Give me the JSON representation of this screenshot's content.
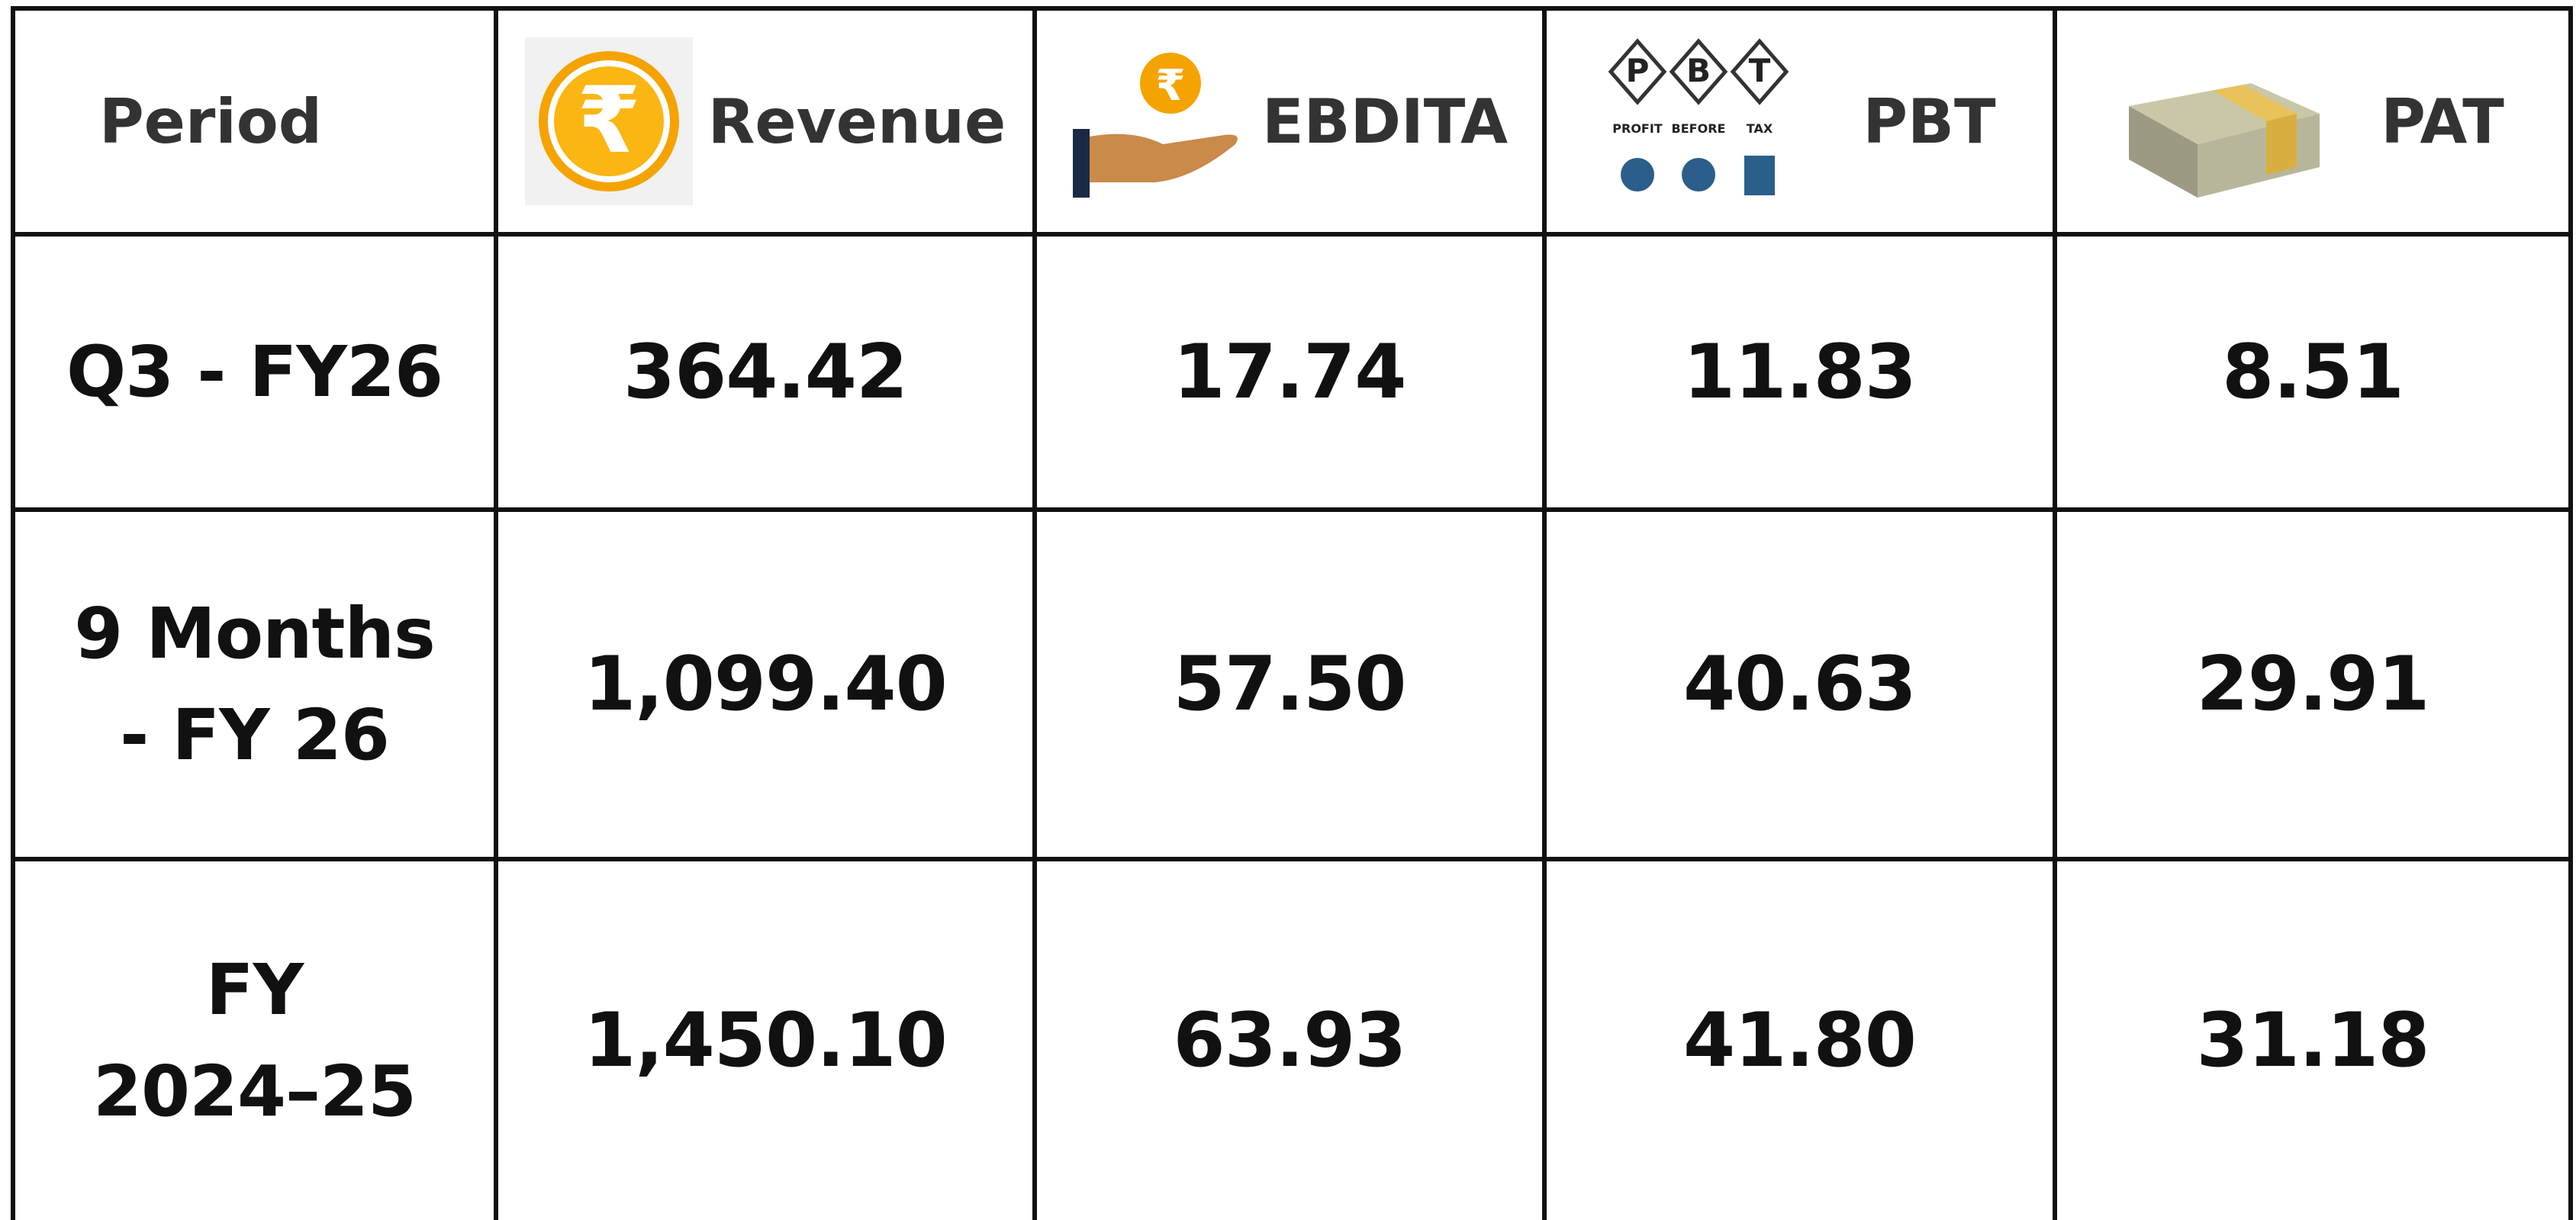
{
  "table": {
    "header": [
      "Period",
      "Revenue",
      "EBDITA",
      "PBT",
      "PAT"
    ],
    "pbt_icon": [
      "P",
      "B",
      "T",
      "PROFIT",
      "BEFORE",
      "TAX"
    ],
    "rows": [
      {
        "period": [
          "Q3 - FY26"
        ],
        "values": [
          "364.42",
          "17.74",
          "11.83",
          "8.51"
        ]
      },
      {
        "period": [
          "9 Months",
          "- FY 26"
        ],
        "values": [
          "1,099.40",
          "57.50",
          "40.63",
          "29.91"
        ]
      },
      {
        "period": [
          "FY",
          "2024–25"
        ],
        "values": [
          "1,450.10",
          "63.93",
          "41.80",
          "31.18"
        ]
      }
    ]
  }
}
